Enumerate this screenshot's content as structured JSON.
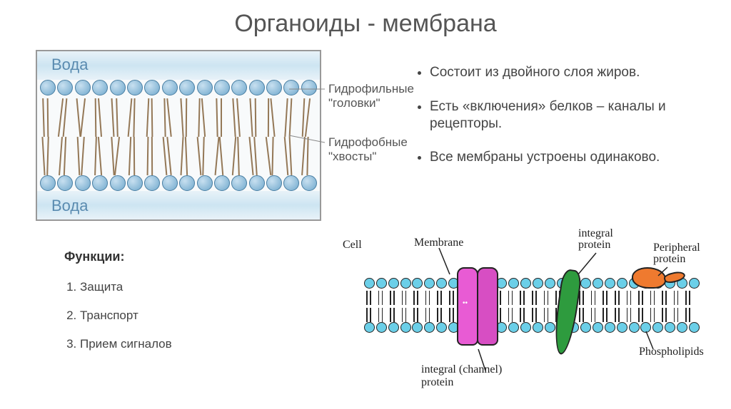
{
  "title": "Органоиды - мембрана",
  "diagram": {
    "water_label": "Вода",
    "heads_label": "Гидрофильные \"головки\"",
    "tails_label": "Гидрофобные \"хвосты\"",
    "colors": {
      "water_bg": "#dcecf5",
      "head_fill": "#8cbcd8",
      "head_border": "#4a7fa3",
      "tail": "#947857",
      "box_border": "#999999"
    },
    "head_count_per_row": 16
  },
  "bullets": [
    "Состоит из двойного слоя жиров.",
    "Есть «включения» белков – каналы и рецепторы.",
    "Все мембраны устроены одинаково."
  ],
  "functions": {
    "title": "Функции:",
    "items": [
      "Защита",
      "Транспорт",
      "Прием сигналов"
    ]
  },
  "sketch": {
    "labels": {
      "cell": "Cell",
      "membrane": "Membrane",
      "integral_protein_top": "integral\nprotein",
      "peripheral_protein": "Peripheral\nprotein",
      "phospholipids": "Phospholipids",
      "integral_channel": "integral (channel)\nprotein"
    },
    "colors": {
      "lipid_head": "#6bcfe8",
      "outline": "#222222",
      "protein_pink": "#e85bd4",
      "protein_green": "#2e9b3e",
      "protein_orange": "#ef7a2f"
    },
    "head_count_per_row": 28
  }
}
